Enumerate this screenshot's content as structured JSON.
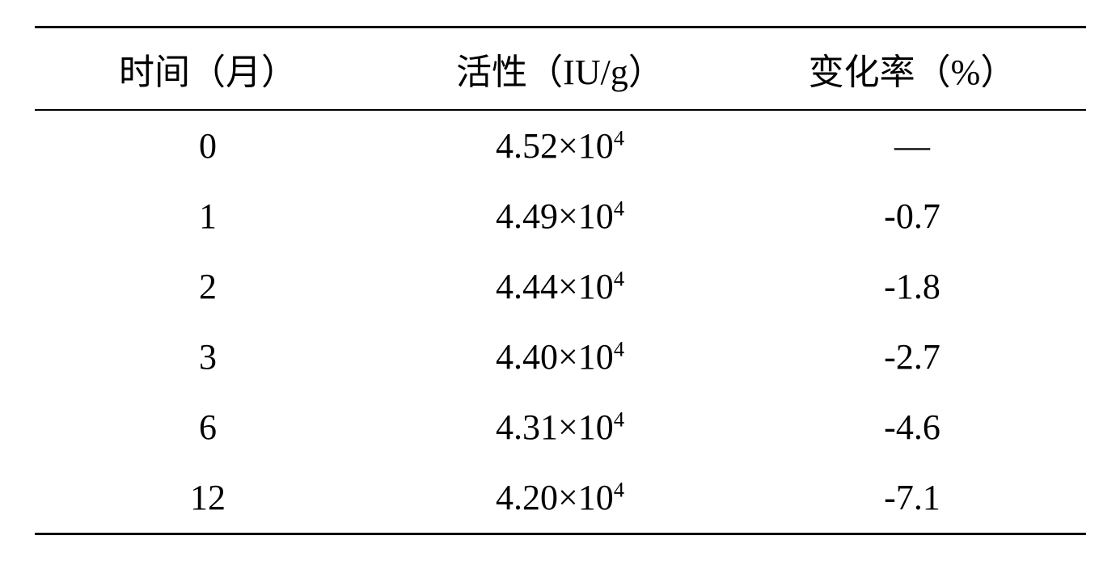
{
  "table": {
    "type": "table",
    "columns": [
      {
        "label": "时间（月）",
        "width": "33%",
        "align": "center"
      },
      {
        "label": "活性（IU/g）",
        "width": "34%",
        "align": "center"
      },
      {
        "label": "变化率（%）",
        "width": "33%",
        "align": "center"
      }
    ],
    "rows": [
      {
        "time": "0",
        "activity_base": "4.52×10",
        "activity_exp": "4",
        "rate": "—"
      },
      {
        "time": "1",
        "activity_base": "4.49×10",
        "activity_exp": "4",
        "rate": "-0.7"
      },
      {
        "time": "2",
        "activity_base": "4.44×10",
        "activity_exp": "4",
        "rate": "-1.8"
      },
      {
        "time": "3",
        "activity_base": "4.40×10",
        "activity_exp": "4",
        "rate": "-2.7"
      },
      {
        "time": "6",
        "activity_base": "4.31×10",
        "activity_exp": "4",
        "rate": "-4.6"
      },
      {
        "time": "12",
        "activity_base": "4.20×10",
        "activity_exp": "4",
        "rate": "-7.1"
      }
    ],
    "border_color": "#000000",
    "top_border_width": 3,
    "bottom_border_width": 3,
    "header_border_width": 2,
    "background_color": "#ffffff",
    "text_color": "#000000",
    "header_fontsize": 44,
    "cell_fontsize": 44,
    "font_family": "SimSun, Times New Roman, serif"
  }
}
